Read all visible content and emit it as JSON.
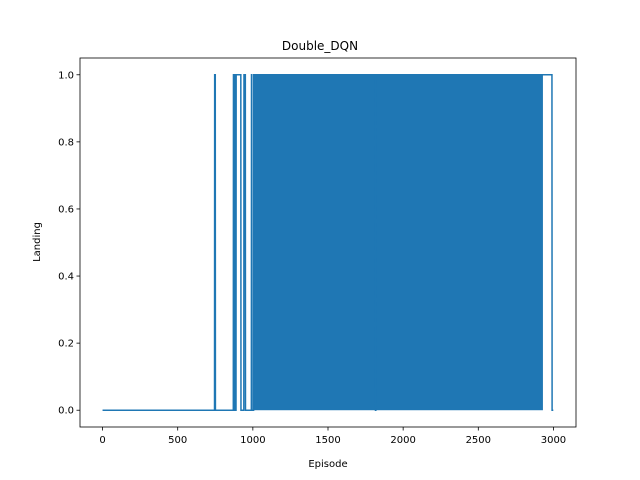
{
  "chart_data": {
    "type": "line",
    "title": "Double_DQN",
    "xlabel": "Episode",
    "ylabel": "Landing",
    "xlim": [
      -150,
      3150
    ],
    "ylim": [
      -0.05,
      1.05
    ],
    "xticks": [
      0,
      500,
      1000,
      1500,
      2000,
      2500,
      3000
    ],
    "yticks": [
      0.0,
      0.2,
      0.4,
      0.6,
      0.8,
      1.0
    ],
    "xtick_labels": [
      "0",
      "500",
      "1000",
      "1500",
      "2000",
      "2500",
      "3000"
    ],
    "ytick_labels": [
      "0.0",
      "0.2",
      "0.4",
      "0.6",
      "0.8",
      "1.0"
    ],
    "grid": false,
    "legend": "none",
    "series": [
      {
        "color": "#1f77b4",
        "x": [
          0,
          745,
          746,
          750,
          751,
          870,
          871,
          875,
          876,
          878,
          879,
          885,
          886,
          888,
          889,
          920,
          921,
          940,
          941,
          950,
          951,
          990,
          991,
          993,
          994,
          1005,
          1006,
          1815,
          1816,
          1818,
          1819,
          2990,
          2991,
          2999
        ],
        "y": [
          0,
          0,
          1,
          1,
          0,
          0,
          1,
          1,
          0,
          0,
          1,
          1,
          0,
          0,
          1,
          1,
          0,
          0,
          1,
          1,
          0,
          0,
          1,
          1,
          0,
          0,
          1,
          1,
          0,
          0,
          1,
          1,
          0,
          0
        ],
        "dense_region": {
          "start": 1006,
          "end": 2930,
          "low": 0,
          "high": 1
        }
      }
    ]
  }
}
